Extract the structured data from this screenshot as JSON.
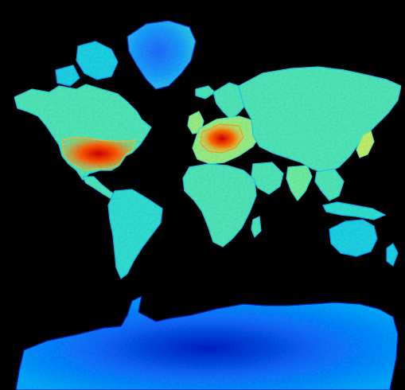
{
  "map": {
    "projection": "mercator",
    "background": "#000000",
    "colormap": [
      "#0000b4",
      "#0a5cff",
      "#00aaff",
      "#22dde0",
      "#6ef0a0",
      "#d8f060",
      "#ffb020",
      "#ff5a00",
      "#d40000"
    ],
    "regions": [
      {
        "name": "north-america",
        "level": 0.45
      },
      {
        "name": "united-states",
        "level": 0.85
      },
      {
        "name": "central-america",
        "level": 0.45
      },
      {
        "name": "south-america",
        "level": 0.4
      },
      {
        "name": "greenland",
        "level": 0.2
      },
      {
        "name": "canadian-arctic-islands",
        "level": 0.35
      },
      {
        "name": "europe",
        "level": 0.55
      },
      {
        "name": "western-europe-core",
        "level": 0.9
      },
      {
        "name": "scandinavia",
        "level": 0.45
      },
      {
        "name": "asia",
        "level": 0.45
      },
      {
        "name": "africa",
        "level": 0.45
      },
      {
        "name": "arabia",
        "level": 0.45
      },
      {
        "name": "india",
        "level": 0.5
      },
      {
        "name": "southeast-asia",
        "level": 0.45
      },
      {
        "name": "japan",
        "level": 0.6
      },
      {
        "name": "indonesia",
        "level": 0.4
      },
      {
        "name": "australia",
        "level": 0.35
      },
      {
        "name": "new-zealand",
        "level": 0.35
      },
      {
        "name": "antarctica",
        "level": 0.15
      }
    ]
  }
}
